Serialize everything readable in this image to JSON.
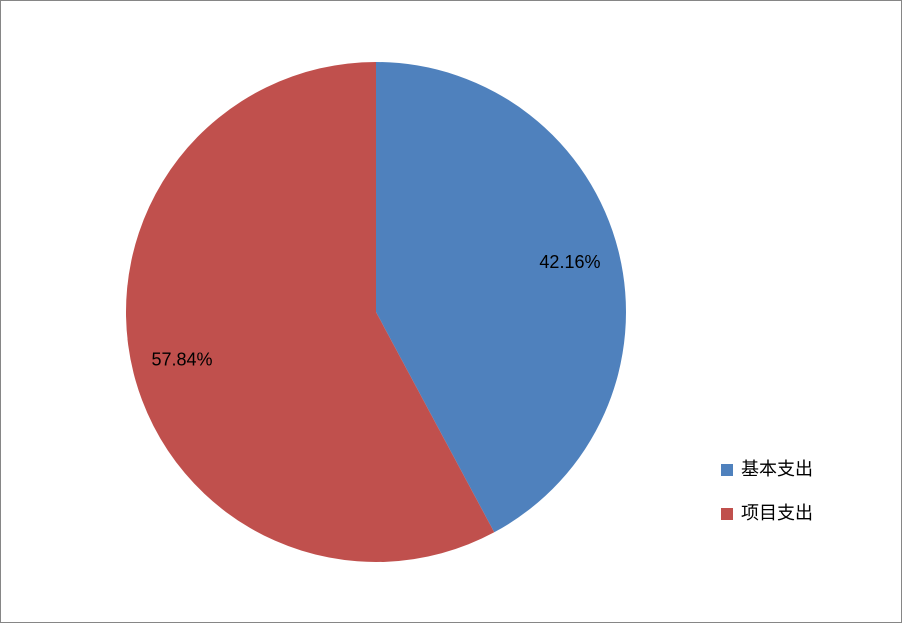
{
  "chart_data": {
    "type": "pie",
    "categories": [
      "基本支出",
      "项目支出"
    ],
    "values": [
      42.16,
      57.84
    ],
    "value_labels": [
      "42.16%",
      "57.84%"
    ],
    "colors": [
      "#4f81bd",
      "#c0504d"
    ],
    "legend": "right"
  }
}
